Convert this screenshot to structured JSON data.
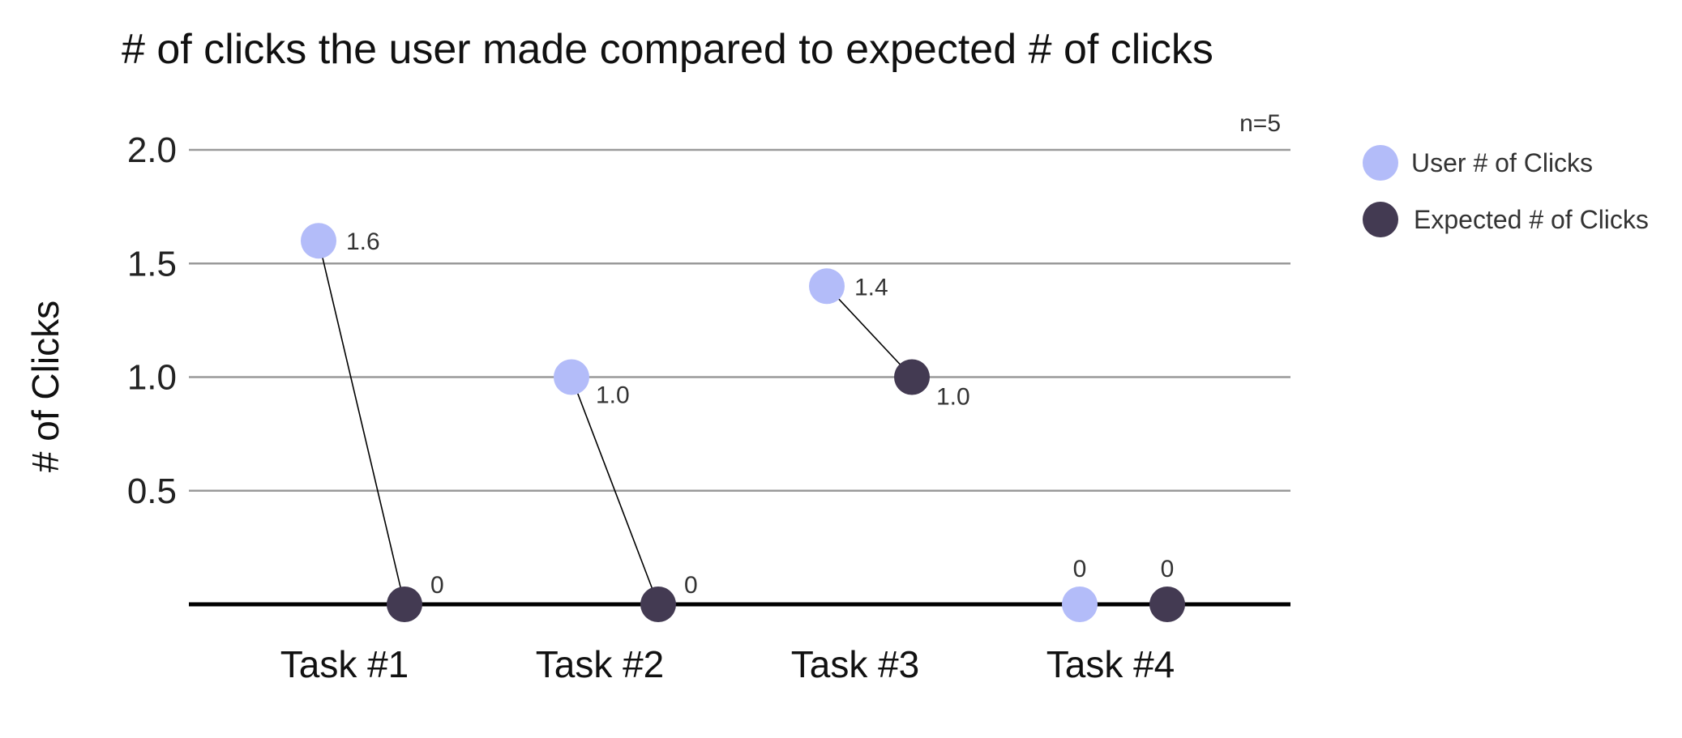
{
  "chart_data": {
    "type": "scatter",
    "title": "# of clicks the user made compared to expected # of clicks",
    "ylabel": "#  of Clicks",
    "xlabel": "",
    "note": "n=5",
    "categories": [
      "Task #1",
      "Task #2",
      "Task #3",
      "Task #4"
    ],
    "yticks": [
      "2.0",
      "1.5",
      "1.0",
      "0.5"
    ],
    "ylim": [
      0,
      2.0
    ],
    "grid": true,
    "legend_position": "right",
    "series": [
      {
        "name": "User # of Clicks",
        "color": "#b3bcf9",
        "values": [
          1.6,
          1.0,
          1.4,
          0
        ],
        "labels": [
          "1.6",
          "1.0",
          "1.4",
          "0"
        ]
      },
      {
        "name": "Expected # of Clicks",
        "color": "#433a52",
        "values": [
          0,
          0,
          1.0,
          0
        ],
        "labels": [
          "0",
          "0",
          "1.0",
          "0"
        ]
      }
    ]
  }
}
